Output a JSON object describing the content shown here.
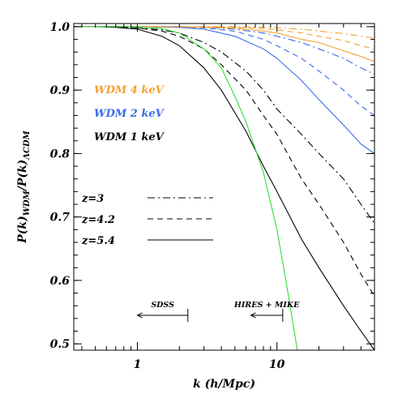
{
  "chart_data": {
    "type": "line",
    "x_scale": "log",
    "xlim": [
      0.35,
      50
    ],
    "ylim": [
      0.49,
      1.005
    ],
    "xlabel_parts": [
      "k (h/Mpc)"
    ],
    "ylabel_parts": [
      "P(k)",
      "WDM",
      "/P(k)",
      "ΛCDM"
    ],
    "x_ticks": [
      {
        "value": 1,
        "label": "1"
      },
      {
        "value": 10,
        "label": "10"
      }
    ],
    "y_ticks": [
      {
        "value": 0.5,
        "label": "0.5"
      },
      {
        "value": 0.6,
        "label": "0.6"
      },
      {
        "value": 0.7,
        "label": "0.7"
      },
      {
        "value": 0.8,
        "label": "0.8"
      },
      {
        "value": 0.9,
        "label": "0.9"
      },
      {
        "value": 1.0,
        "label": "1.0"
      }
    ],
    "colors": {
      "wdm4": "#f5a033",
      "wdm2": "#3b6be8",
      "wdm1": "#000000",
      "data_limit": "#33dd33"
    },
    "mass_legend": [
      {
        "label": "WDM 4 keV",
        "color": "#f5a033"
      },
      {
        "label": "WDM 2 keV",
        "color": "#3b6be8"
      },
      {
        "label": "WDM 1 keV",
        "color": "#000000"
      }
    ],
    "redshift_legend": [
      {
        "label": "z=3",
        "dash": "dashdot"
      },
      {
        "label": "z=4.2",
        "dash": "dash"
      },
      {
        "label": "z=5.4",
        "dash": "solid"
      }
    ],
    "annotations": [
      {
        "label": "SDSS",
        "k_start": 2.3,
        "k_end": 1.0,
        "y": 0.545
      },
      {
        "label": "HIRES + MIKE",
        "k_start": 11.0,
        "k_end": 6.5,
        "y": 0.545
      }
    ],
    "series": [
      {
        "mass": "1 keV",
        "z": "3",
        "dash": "dashdot",
        "color": "#000000",
        "x": [
          0.35,
          0.5,
          0.7,
          1.0,
          1.5,
          2.0,
          3.0,
          4.0,
          6.0,
          8.0,
          10.0,
          15.0,
          20.0,
          30.0,
          40.0,
          50.0
        ],
        "y": [
          1.0,
          1.0,
          1.0,
          0.998,
          0.995,
          0.99,
          0.975,
          0.96,
          0.93,
          0.9,
          0.87,
          0.83,
          0.8,
          0.76,
          0.72,
          0.69
        ]
      },
      {
        "mass": "1 keV",
        "z": "4.2",
        "dash": "dash",
        "color": "#000000",
        "x": [
          0.35,
          0.5,
          0.7,
          1.0,
          1.5,
          2.0,
          3.0,
          4.0,
          6.0,
          8.0,
          10.0,
          15.0,
          20.0,
          30.0,
          40.0,
          50.0
        ],
        "y": [
          1.0,
          1.0,
          1.0,
          0.998,
          0.993,
          0.985,
          0.965,
          0.94,
          0.9,
          0.86,
          0.83,
          0.76,
          0.72,
          0.66,
          0.61,
          0.575
        ]
      },
      {
        "mass": "1 keV",
        "z": "5.4",
        "dash": "solid",
        "color": "#000000",
        "x": [
          0.35,
          0.5,
          0.7,
          1.0,
          1.5,
          2.0,
          3.0,
          4.0,
          6.0,
          8.0,
          10.0,
          15.0,
          20.0,
          30.0,
          40.0,
          50.0
        ],
        "y": [
          1.0,
          1.0,
          0.999,
          0.996,
          0.985,
          0.97,
          0.935,
          0.9,
          0.835,
          0.78,
          0.74,
          0.665,
          0.62,
          0.56,
          0.52,
          0.49
        ]
      },
      {
        "mass": "2 keV",
        "z": "3",
        "dash": "dashdot",
        "color": "#3b6be8",
        "x": [
          0.35,
          1.0,
          2.0,
          3.0,
          5.0,
          8.0,
          10.0,
          15.0,
          20.0,
          30.0,
          40.0,
          50.0
        ],
        "y": [
          1.0,
          1.0,
          1.0,
          0.999,
          0.996,
          0.99,
          0.985,
          0.975,
          0.965,
          0.95,
          0.935,
          0.925
        ]
      },
      {
        "mass": "2 keV",
        "z": "4.2",
        "dash": "dash",
        "color": "#3b6be8",
        "x": [
          0.35,
          1.0,
          2.0,
          3.0,
          5.0,
          8.0,
          10.0,
          15.0,
          20.0,
          30.0,
          40.0,
          50.0
        ],
        "y": [
          1.0,
          1.0,
          1.0,
          0.998,
          0.993,
          0.98,
          0.97,
          0.95,
          0.93,
          0.9,
          0.875,
          0.86
        ]
      },
      {
        "mass": "2 keV",
        "z": "5.4",
        "dash": "solid",
        "color": "#3b6be8",
        "x": [
          0.35,
          1.0,
          2.0,
          3.0,
          5.0,
          8.0,
          10.0,
          15.0,
          20.0,
          30.0,
          40.0,
          50.0
        ],
        "y": [
          1.0,
          1.0,
          0.999,
          0.996,
          0.985,
          0.965,
          0.95,
          0.915,
          0.885,
          0.845,
          0.815,
          0.8
        ]
      },
      {
        "mass": "4 keV",
        "z": "3",
        "dash": "dashdot",
        "color": "#f5a033",
        "x": [
          0.35,
          2.0,
          5.0,
          8.0,
          10.0,
          15.0,
          20.0,
          30.0,
          40.0,
          50.0
        ],
        "y": [
          1.0,
          1.0,
          1.0,
          0.999,
          0.998,
          0.996,
          0.993,
          0.989,
          0.985,
          0.982
        ]
      },
      {
        "mass": "4 keV",
        "z": "4.2",
        "dash": "dash",
        "color": "#f5a033",
        "x": [
          0.35,
          2.0,
          5.0,
          8.0,
          10.0,
          15.0,
          20.0,
          30.0,
          40.0,
          50.0
        ],
        "y": [
          1.0,
          1.0,
          0.999,
          0.997,
          0.995,
          0.99,
          0.985,
          0.978,
          0.97,
          0.965
        ]
      },
      {
        "mass": "4 keV",
        "z": "5.4",
        "dash": "solid",
        "color": "#f5a033",
        "x": [
          0.35,
          2.0,
          5.0,
          8.0,
          10.0,
          15.0,
          20.0,
          30.0,
          40.0,
          50.0
        ],
        "y": [
          1.0,
          1.0,
          0.998,
          0.993,
          0.99,
          0.98,
          0.975,
          0.962,
          0.953,
          0.945
        ]
      },
      {
        "mass": "data limit",
        "z": "",
        "dash": "solid",
        "color": "#33dd33",
        "x": [
          0.35,
          1.0,
          1.5,
          2.0,
          3.0,
          4.0,
          5.0,
          6.0,
          8.0,
          10.0,
          12.0,
          14.0
        ],
        "y": [
          1.0,
          1.0,
          0.997,
          0.99,
          0.965,
          0.935,
          0.89,
          0.85,
          0.77,
          0.68,
          0.58,
          0.49
        ]
      }
    ]
  }
}
